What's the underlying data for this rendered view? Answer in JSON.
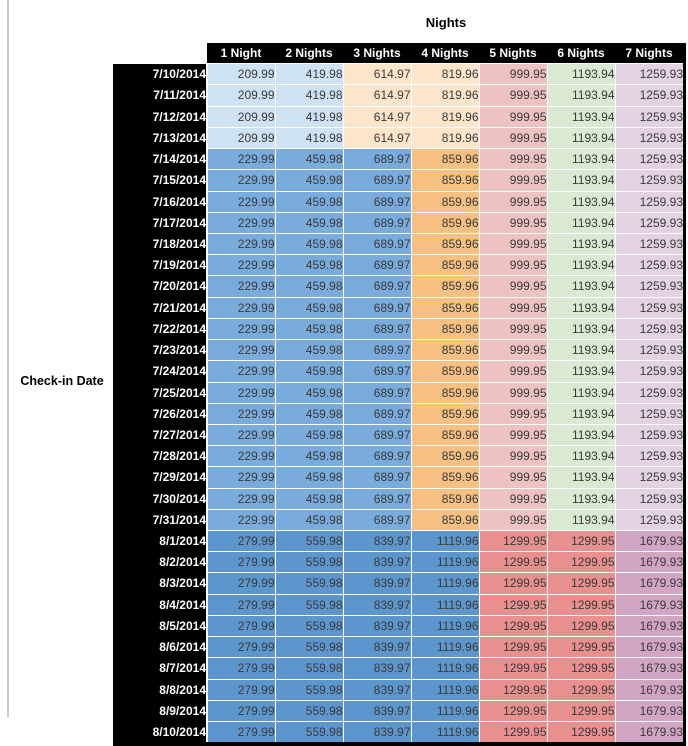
{
  "title": "Nights",
  "row_axis_label": "Check-in Date",
  "chart_data": {
    "type": "table",
    "title": "Nights",
    "row_header": "Check-in Date",
    "columns": [
      "1 Night",
      "2 Nights",
      "3 Nights",
      "4 Nights",
      "5 Nights",
      "6 Nights",
      "7 Nights"
    ],
    "styles": {
      "early_july": [
        "#cfe2f3",
        "#cfe2f3",
        "#fce5cb",
        "#fce5cb",
        "#eec2c2",
        "#d9e9d2",
        "#e2d2e2"
      ],
      "mid_july": [
        "#79abdc",
        "#79abdc",
        "#79abdc",
        "#f6c083",
        "#eec2c2",
        "#d9e9d2",
        "#e2d2e2"
      ],
      "august": [
        "#5d95cd",
        "#5d95cd",
        "#5d95cd",
        "#5d95cd",
        "#e88f8f",
        "#e88f8f",
        "#d2a5c4"
      ]
    },
    "header_bg": "#000000",
    "header_text": "#ffffff",
    "rows": [
      {
        "date": "7/10/2014",
        "band": "early_july",
        "values": [
          209.99,
          419.98,
          614.97,
          819.96,
          999.95,
          1193.94,
          1259.93
        ]
      },
      {
        "date": "7/11/2014",
        "band": "early_july",
        "values": [
          209.99,
          419.98,
          614.97,
          819.96,
          999.95,
          1193.94,
          1259.93
        ]
      },
      {
        "date": "7/12/2014",
        "band": "early_july",
        "values": [
          209.99,
          419.98,
          614.97,
          819.96,
          999.95,
          1193.94,
          1259.93
        ]
      },
      {
        "date": "7/13/2014",
        "band": "early_july",
        "values": [
          209.99,
          419.98,
          614.97,
          819.96,
          999.95,
          1193.94,
          1259.93
        ]
      },
      {
        "date": "7/14/2014",
        "band": "mid_july",
        "values": [
          229.99,
          459.98,
          689.97,
          859.96,
          999.95,
          1193.94,
          1259.93
        ]
      },
      {
        "date": "7/15/2014",
        "band": "mid_july",
        "values": [
          229.99,
          459.98,
          689.97,
          859.96,
          999.95,
          1193.94,
          1259.93
        ]
      },
      {
        "date": "7/16/2014",
        "band": "mid_july",
        "values": [
          229.99,
          459.98,
          689.97,
          859.96,
          999.95,
          1193.94,
          1259.93
        ]
      },
      {
        "date": "7/17/2014",
        "band": "mid_july",
        "values": [
          229.99,
          459.98,
          689.97,
          859.96,
          999.95,
          1193.94,
          1259.93
        ]
      },
      {
        "date": "7/18/2014",
        "band": "mid_july",
        "values": [
          229.99,
          459.98,
          689.97,
          859.96,
          999.95,
          1193.94,
          1259.93
        ]
      },
      {
        "date": "7/19/2014",
        "band": "mid_july",
        "values": [
          229.99,
          459.98,
          689.97,
          859.96,
          999.95,
          1193.94,
          1259.93
        ]
      },
      {
        "date": "7/20/2014",
        "band": "mid_july",
        "values": [
          229.99,
          459.98,
          689.97,
          859.96,
          999.95,
          1193.94,
          1259.93
        ]
      },
      {
        "date": "7/21/2014",
        "band": "mid_july",
        "values": [
          229.99,
          459.98,
          689.97,
          859.96,
          999.95,
          1193.94,
          1259.93
        ]
      },
      {
        "date": "7/22/2014",
        "band": "mid_july",
        "values": [
          229.99,
          459.98,
          689.97,
          859.96,
          999.95,
          1193.94,
          1259.93
        ]
      },
      {
        "date": "7/23/2014",
        "band": "mid_july",
        "values": [
          229.99,
          459.98,
          689.97,
          859.96,
          999.95,
          1193.94,
          1259.93
        ]
      },
      {
        "date": "7/24/2014",
        "band": "mid_july",
        "values": [
          229.99,
          459.98,
          689.97,
          859.96,
          999.95,
          1193.94,
          1259.93
        ]
      },
      {
        "date": "7/25/2014",
        "band": "mid_july",
        "values": [
          229.99,
          459.98,
          689.97,
          859.96,
          999.95,
          1193.94,
          1259.93
        ]
      },
      {
        "date": "7/26/2014",
        "band": "mid_july",
        "values": [
          229.99,
          459.98,
          689.97,
          859.96,
          999.95,
          1193.94,
          1259.93
        ]
      },
      {
        "date": "7/27/2014",
        "band": "mid_july",
        "values": [
          229.99,
          459.98,
          689.97,
          859.96,
          999.95,
          1193.94,
          1259.93
        ]
      },
      {
        "date": "7/28/2014",
        "band": "mid_july",
        "values": [
          229.99,
          459.98,
          689.97,
          859.96,
          999.95,
          1193.94,
          1259.93
        ]
      },
      {
        "date": "7/29/2014",
        "band": "mid_july",
        "values": [
          229.99,
          459.98,
          689.97,
          859.96,
          999.95,
          1193.94,
          1259.93
        ]
      },
      {
        "date": "7/30/2014",
        "band": "mid_july",
        "values": [
          229.99,
          459.98,
          689.97,
          859.96,
          999.95,
          1193.94,
          1259.93
        ]
      },
      {
        "date": "7/31/2014",
        "band": "mid_july",
        "values": [
          229.99,
          459.98,
          689.97,
          859.96,
          999.95,
          1193.94,
          1259.93
        ]
      },
      {
        "date": "8/1/2014",
        "band": "august",
        "values": [
          279.99,
          559.98,
          839.97,
          1119.96,
          1299.95,
          1299.95,
          1679.93
        ]
      },
      {
        "date": "8/2/2014",
        "band": "august",
        "values": [
          279.99,
          559.98,
          839.97,
          1119.96,
          1299.95,
          1299.95,
          1679.93
        ]
      },
      {
        "date": "8/3/2014",
        "band": "august",
        "values": [
          279.99,
          559.98,
          839.97,
          1119.96,
          1299.95,
          1299.95,
          1679.93
        ]
      },
      {
        "date": "8/4/2014",
        "band": "august",
        "values": [
          279.99,
          559.98,
          839.97,
          1119.96,
          1299.95,
          1299.95,
          1679.93
        ]
      },
      {
        "date": "8/5/2014",
        "band": "august",
        "values": [
          279.99,
          559.98,
          839.97,
          1119.96,
          1299.95,
          1299.95,
          1679.93
        ]
      },
      {
        "date": "8/6/2014",
        "band": "august",
        "values": [
          279.99,
          559.98,
          839.97,
          1119.96,
          1299.95,
          1299.95,
          1679.93
        ]
      },
      {
        "date": "8/7/2014",
        "band": "august",
        "values": [
          279.99,
          559.98,
          839.97,
          1119.96,
          1299.95,
          1299.95,
          1679.93
        ]
      },
      {
        "date": "8/8/2014",
        "band": "august",
        "values": [
          279.99,
          559.98,
          839.97,
          1119.96,
          1299.95,
          1299.95,
          1679.93
        ]
      },
      {
        "date": "8/9/2014",
        "band": "august",
        "values": [
          279.99,
          559.98,
          839.97,
          1119.96,
          1299.95,
          1299.95,
          1679.93
        ]
      },
      {
        "date": "8/10/2014",
        "band": "august",
        "values": [
          279.99,
          559.98,
          839.97,
          1119.96,
          1299.95,
          1299.95,
          1679.93
        ]
      }
    ]
  }
}
